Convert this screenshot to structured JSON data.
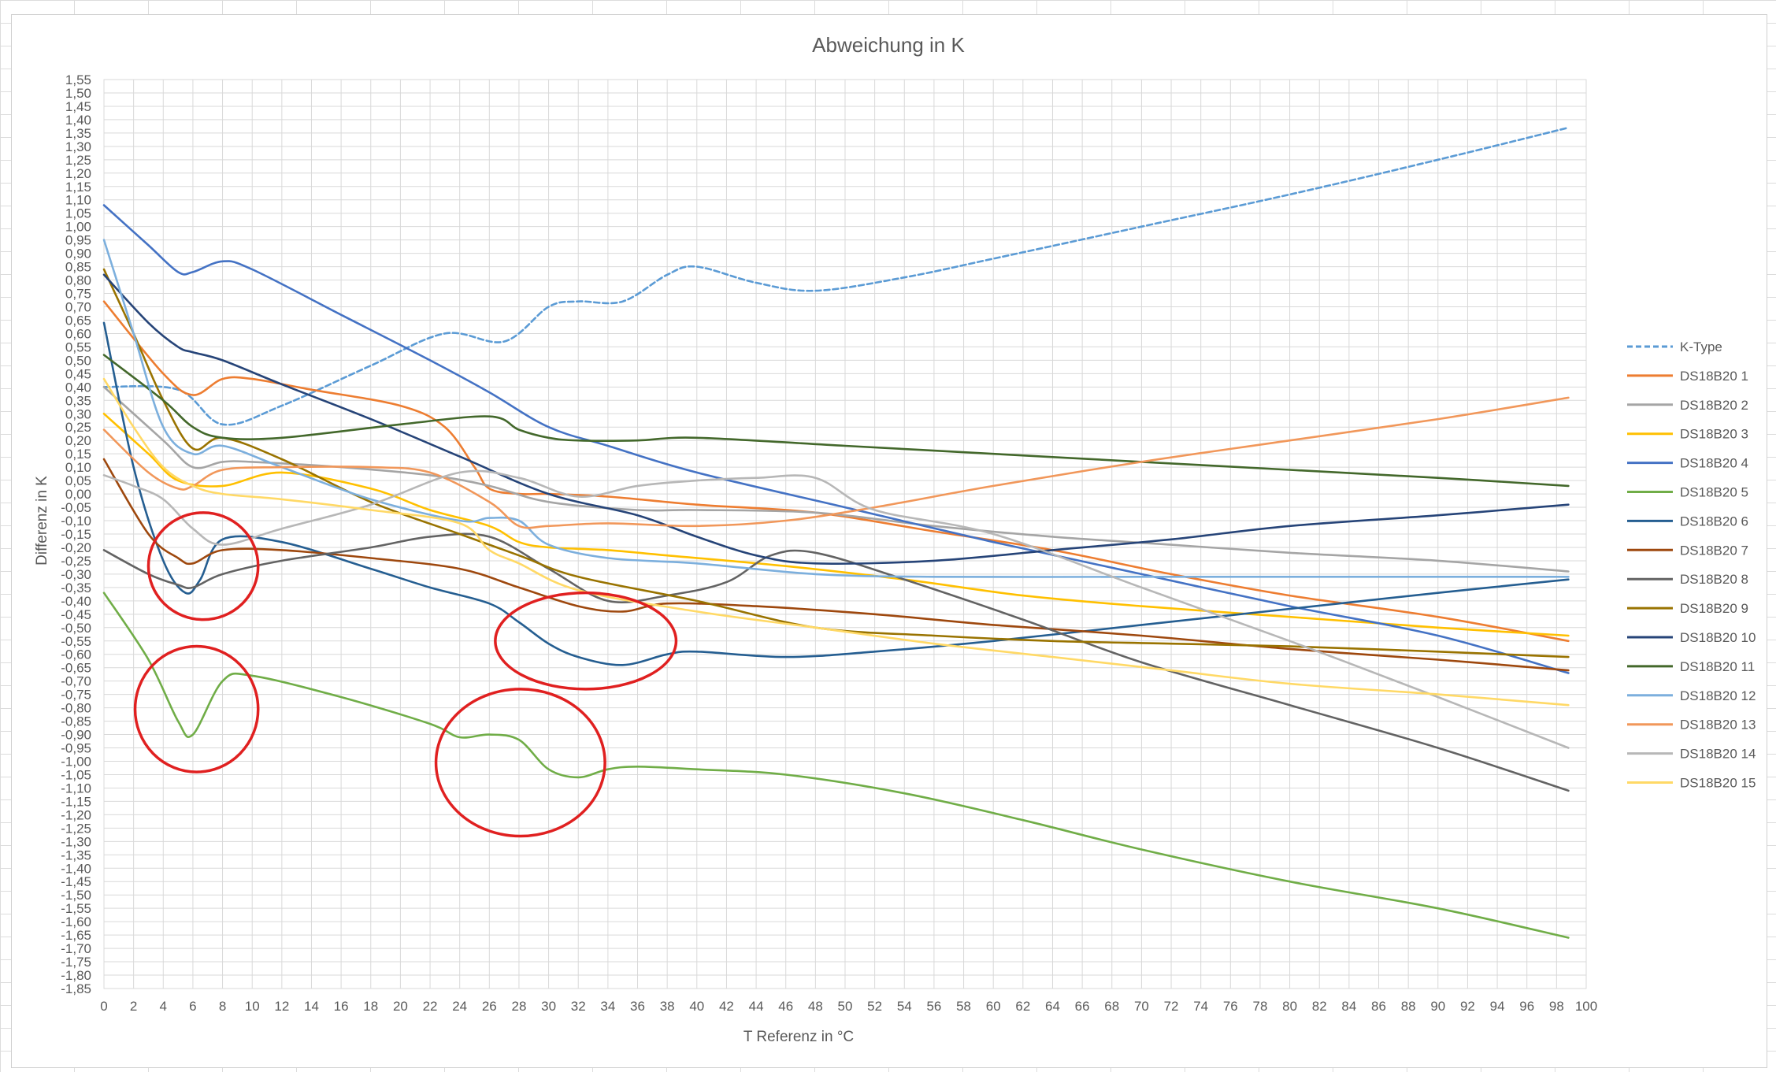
{
  "chart_data": {
    "type": "line",
    "title": "Abweichung in K",
    "xlabel": "T Referenz in °C",
    "ylabel": "Differenz in K",
    "xlim": [
      0,
      100
    ],
    "ylim": [
      -1.85,
      1.55
    ],
    "x_tick_step": 2,
    "y_tick_step": 0.05,
    "decimal_separator": ",",
    "grid": true,
    "legend_position": "right",
    "series": [
      {
        "name": "K-Type",
        "color": "#5b9bd5",
        "dashed": true,
        "x": [
          0,
          5,
          8,
          12,
          18,
          23,
          27,
          30,
          32,
          35,
          38,
          40,
          44,
          48,
          54,
          60,
          70,
          80,
          90,
          98.8
        ],
        "y": [
          0.4,
          0.39,
          0.26,
          0.33,
          0.48,
          0.6,
          0.57,
          0.7,
          0.72,
          0.72,
          0.82,
          0.85,
          0.79,
          0.76,
          0.81,
          0.88,
          1.0,
          1.12,
          1.25,
          1.37
        ]
      },
      {
        "name": "DS18B20 1",
        "color": "#ed7d31",
        "x": [
          0,
          4,
          6,
          8,
          10,
          14,
          20,
          23,
          25,
          26,
          28,
          30,
          34,
          40,
          48,
          56,
          64,
          72,
          80,
          90,
          98.8
        ],
        "y": [
          0.72,
          0.45,
          0.37,
          0.43,
          0.43,
          0.39,
          0.33,
          0.25,
          0.1,
          0.02,
          0.0,
          0.0,
          -0.01,
          -0.04,
          -0.07,
          -0.14,
          -0.21,
          -0.3,
          -0.38,
          -0.46,
          -0.55
        ]
      },
      {
        "name": "DS18B20 2",
        "color": "#a5a5a5",
        "x": [
          0,
          4,
          6,
          8,
          10,
          16,
          22,
          26,
          30,
          36,
          40,
          48,
          56,
          64,
          72,
          80,
          90,
          98.8
        ],
        "y": [
          0.4,
          0.2,
          0.1,
          0.12,
          0.12,
          0.1,
          0.07,
          0.03,
          -0.03,
          -0.06,
          -0.06,
          -0.07,
          -0.12,
          -0.16,
          -0.19,
          -0.22,
          -0.25,
          -0.29
        ]
      },
      {
        "name": "DS18B20 3",
        "color": "#ffc000",
        "x": [
          0,
          3,
          5,
          8,
          12,
          18,
          22,
          26,
          28,
          30,
          34,
          38,
          46,
          54,
          62,
          70,
          80,
          90,
          98.8
        ],
        "y": [
          0.3,
          0.15,
          0.05,
          0.03,
          0.08,
          0.02,
          -0.06,
          -0.12,
          -0.18,
          -0.2,
          -0.21,
          -0.23,
          -0.27,
          -0.32,
          -0.38,
          -0.42,
          -0.46,
          -0.5,
          -0.53
        ]
      },
      {
        "name": "DS18B20 4",
        "color": "#4472c4",
        "x": [
          0,
          3,
          5,
          6,
          8,
          10,
          16,
          22,
          26,
          30,
          34,
          40,
          50,
          60,
          70,
          80,
          90,
          98.8
        ],
        "y": [
          1.08,
          0.93,
          0.83,
          0.83,
          0.87,
          0.84,
          0.67,
          0.5,
          0.38,
          0.25,
          0.18,
          0.08,
          -0.05,
          -0.18,
          -0.3,
          -0.42,
          -0.53,
          -0.67
        ]
      },
      {
        "name": "DS18B20 5",
        "color": "#70ad47",
        "x": [
          0,
          3,
          5,
          6,
          8,
          10,
          16,
          22,
          24,
          26,
          28,
          30,
          32,
          34,
          36,
          40,
          46,
          54,
          62,
          70,
          80,
          90,
          98.8
        ],
        "y": [
          -0.37,
          -0.62,
          -0.85,
          -0.9,
          -0.7,
          -0.68,
          -0.76,
          -0.86,
          -0.91,
          -0.9,
          -0.92,
          -1.03,
          -1.06,
          -1.03,
          -1.02,
          -1.03,
          -1.05,
          -1.12,
          -1.22,
          -1.33,
          -1.45,
          -1.55,
          -1.66
        ]
      },
      {
        "name": "DS18B20 6",
        "color": "#255e91",
        "x": [
          0,
          2,
          4,
          5.5,
          6.5,
          8,
          12,
          18,
          22,
          26,
          28,
          30,
          32,
          35,
          38,
          40,
          46,
          52,
          60,
          70,
          80,
          90,
          98.8
        ],
        "y": [
          0.64,
          0.1,
          -0.25,
          -0.37,
          -0.32,
          -0.17,
          -0.18,
          -0.28,
          -0.35,
          -0.41,
          -0.48,
          -0.56,
          -0.61,
          -0.64,
          -0.6,
          -0.59,
          -0.61,
          -0.59,
          -0.55,
          -0.49,
          -0.43,
          -0.37,
          -0.32
        ]
      },
      {
        "name": "DS18B20 7",
        "color": "#9e480e",
        "x": [
          0,
          3,
          5,
          6,
          8,
          12,
          18,
          24,
          28,
          32,
          35,
          38,
          44,
          52,
          60,
          70,
          80,
          90,
          98.8
        ],
        "y": [
          0.13,
          -0.15,
          -0.24,
          -0.26,
          -0.21,
          -0.21,
          -0.24,
          -0.28,
          -0.35,
          -0.42,
          -0.44,
          -0.41,
          -0.42,
          -0.45,
          -0.49,
          -0.53,
          -0.58,
          -0.62,
          -0.66
        ]
      },
      {
        "name": "DS18B20 8",
        "color": "#636363",
        "x": [
          0,
          3,
          5,
          6,
          8,
          12,
          18,
          22,
          26,
          30,
          34,
          38,
          42,
          45,
          48,
          54,
          62,
          70,
          80,
          90,
          98.8
        ],
        "y": [
          -0.21,
          -0.3,
          -0.34,
          -0.35,
          -0.3,
          -0.25,
          -0.2,
          -0.16,
          -0.16,
          -0.28,
          -0.4,
          -0.38,
          -0.33,
          -0.23,
          -0.22,
          -0.32,
          -0.47,
          -0.63,
          -0.79,
          -0.95,
          -1.11
        ]
      },
      {
        "name": "DS18B20 9",
        "color": "#997300",
        "x": [
          0,
          2,
          4,
          6,
          8,
          12,
          18,
          24,
          28,
          32,
          40,
          48,
          56,
          64,
          72,
          80,
          90,
          98.8
        ],
        "y": [
          0.84,
          0.6,
          0.35,
          0.17,
          0.21,
          0.13,
          -0.03,
          -0.15,
          -0.23,
          -0.31,
          -0.4,
          -0.5,
          -0.53,
          -0.55,
          -0.56,
          -0.57,
          -0.59,
          -0.61
        ]
      },
      {
        "name": "DS18B20 10",
        "color": "#264478",
        "x": [
          0,
          3,
          5,
          6,
          8,
          12,
          18,
          24,
          30,
          36,
          40,
          44,
          48,
          56,
          64,
          72,
          80,
          90,
          98.8
        ],
        "y": [
          0.82,
          0.64,
          0.55,
          0.53,
          0.5,
          0.41,
          0.28,
          0.14,
          0.0,
          -0.08,
          -0.16,
          -0.23,
          -0.26,
          -0.25,
          -0.21,
          -0.17,
          -0.12,
          -0.08,
          -0.04
        ]
      },
      {
        "name": "DS18B20 11",
        "color": "#43682b",
        "x": [
          0,
          4,
          6,
          8,
          12,
          20,
          26,
          28,
          30,
          32,
          36,
          40,
          50,
          60,
          70,
          80,
          90,
          98.8
        ],
        "y": [
          0.52,
          0.35,
          0.25,
          0.21,
          0.21,
          0.26,
          0.29,
          0.24,
          0.21,
          0.2,
          0.2,
          0.21,
          0.18,
          0.15,
          0.12,
          0.09,
          0.06,
          0.03
        ]
      },
      {
        "name": "DS18B20 12",
        "color": "#7cafdd",
        "x": [
          0,
          2,
          4,
          6,
          8,
          12,
          18,
          24,
          26,
          28,
          30,
          34,
          40,
          48,
          56,
          70,
          80,
          90,
          98.8
        ],
        "y": [
          0.95,
          0.6,
          0.25,
          0.15,
          0.18,
          0.1,
          -0.02,
          -0.1,
          -0.09,
          -0.1,
          -0.19,
          -0.24,
          -0.26,
          -0.3,
          -0.31,
          -0.31,
          -0.31,
          -0.31,
          -0.31
        ]
      },
      {
        "name": "DS18B20 13",
        "color": "#f1975a",
        "x": [
          0,
          3,
          5,
          6,
          8,
          12,
          18,
          22,
          26,
          28,
          30,
          34,
          40,
          46,
          52,
          60,
          70,
          80,
          90,
          98.8
        ],
        "y": [
          0.24,
          0.08,
          0.02,
          0.03,
          0.09,
          0.1,
          0.1,
          0.08,
          -0.03,
          -0.12,
          -0.12,
          -0.11,
          -0.12,
          -0.1,
          -0.05,
          0.03,
          0.12,
          0.2,
          0.28,
          0.36
        ]
      },
      {
        "name": "DS18B20 14",
        "color": "#b7b7b7",
        "x": [
          0,
          2,
          4,
          6,
          8,
          12,
          18,
          24,
          28,
          32,
          36,
          40,
          44,
          48,
          52,
          60,
          70,
          80,
          90,
          98.8
        ],
        "y": [
          0.07,
          0.03,
          -0.02,
          -0.13,
          -0.19,
          -0.13,
          -0.04,
          0.08,
          0.06,
          -0.01,
          0.03,
          0.05,
          0.06,
          0.06,
          -0.06,
          -0.15,
          -0.35,
          -0.55,
          -0.76,
          -0.95
        ]
      },
      {
        "name": "DS18B20 15",
        "color": "#ffd966",
        "x": [
          0,
          2,
          4,
          6,
          8,
          12,
          18,
          24,
          26,
          28,
          32,
          40,
          48,
          56,
          64,
          72,
          80,
          90,
          98.8
        ],
        "y": [
          0.43,
          0.25,
          0.1,
          0.03,
          0.0,
          -0.02,
          -0.06,
          -0.11,
          -0.21,
          -0.26,
          -0.36,
          -0.44,
          -0.5,
          -0.56,
          -0.61,
          -0.66,
          -0.71,
          -0.75,
          -0.79
        ]
      }
    ],
    "annotations": [
      {
        "shape": "ellipse",
        "color": "#e02020",
        "x_range": [
          3,
          10.4
        ],
        "y_range": [
          -0.47,
          -0.07
        ]
      },
      {
        "shape": "ellipse",
        "color": "#e02020",
        "x_range": [
          2.1,
          10.4
        ],
        "y_range": [
          -1.04,
          -0.57
        ]
      },
      {
        "shape": "ellipse",
        "color": "#e02020",
        "x_range": [
          26.4,
          38.6
        ],
        "y_range": [
          -0.73,
          -0.37
        ]
      },
      {
        "shape": "ellipse",
        "color": "#e02020",
        "x_range": [
          22.4,
          33.8
        ],
        "y_range": [
          -1.28,
          -0.73
        ]
      }
    ]
  }
}
